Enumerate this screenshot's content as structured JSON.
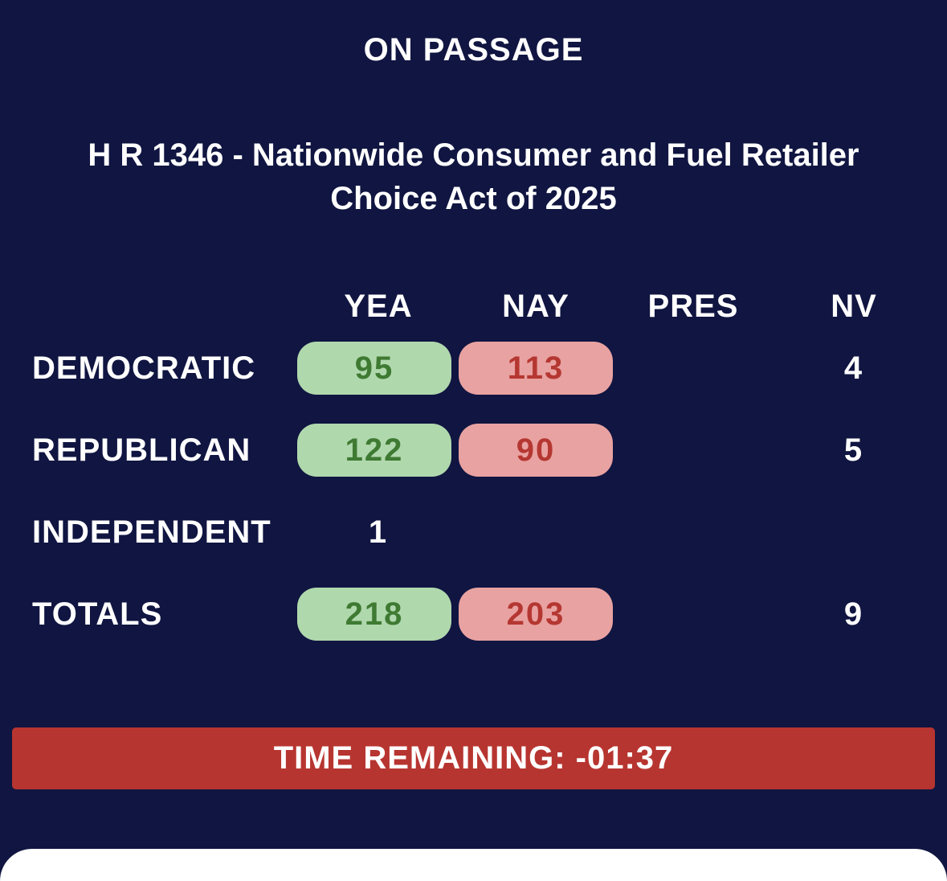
{
  "vote_type": "ON PASSAGE",
  "bill_title": "H R 1346 - Nationwide Consumer and Fuel Retailer Choice Act of 2025",
  "columns": {
    "yea": "YEA",
    "nay": "NAY",
    "pres": "PRES",
    "nv": "NV"
  },
  "rows": [
    {
      "label": "DEMOCRATIC",
      "yea": "95",
      "nay": "113",
      "pres": "",
      "nv": "4"
    },
    {
      "label": "REPUBLICAN",
      "yea": "122",
      "nay": "90",
      "pres": "",
      "nv": "5"
    },
    {
      "label": "INDEPENDENT",
      "yea": "1",
      "nay": "",
      "pres": "",
      "nv": ""
    },
    {
      "label": "TOTALS",
      "yea": "218",
      "nay": "203",
      "pres": "",
      "nv": "9"
    }
  ],
  "timer": "TIME REMAINING: -01:37",
  "colors": {
    "background": "#101541",
    "yea_bg": "#b0d8ad",
    "yea_text": "#3f7a33",
    "nay_bg": "#e8a2a1",
    "nay_text": "#b53732",
    "timer_bg": "#b73530"
  }
}
